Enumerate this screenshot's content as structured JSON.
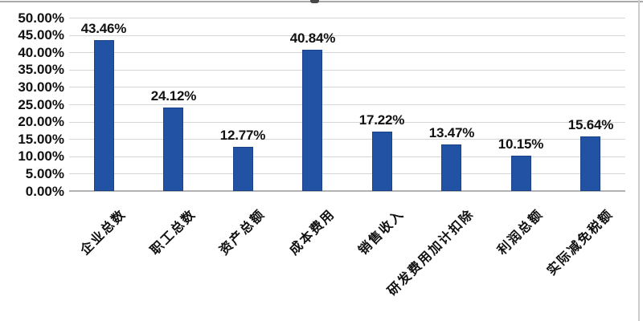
{
  "chart_data": {
    "type": "bar",
    "categories": [
      "企业总数",
      "职工总数",
      "资产总额",
      "成本费用",
      "销售收入",
      "研发费用加计扣除",
      "利润总额",
      "实际减免税额"
    ],
    "values": [
      43.46,
      24.12,
      12.77,
      40.84,
      17.22,
      13.47,
      10.15,
      15.64
    ],
    "data_labels": [
      "43.46%",
      "24.12%",
      "12.77%",
      "40.84%",
      "17.22%",
      "13.47%",
      "10.15%",
      "15.64%"
    ],
    "y_tick_labels": [
      "50.00%",
      "45.00%",
      "40.00%",
      "35.00%",
      "30.00%",
      "25.00%",
      "20.00%",
      "15.00%",
      "10.00%",
      "5.00%",
      "0.00%"
    ],
    "ylim": [
      0,
      50
    ],
    "grid": true,
    "legend": "none",
    "bar_color": "#2152a3",
    "bar_border_color": "#1a4186",
    "gridline_color": "#d6d6d6",
    "axis_line_color": "#b3b3b3",
    "label_color": "#111111"
  }
}
